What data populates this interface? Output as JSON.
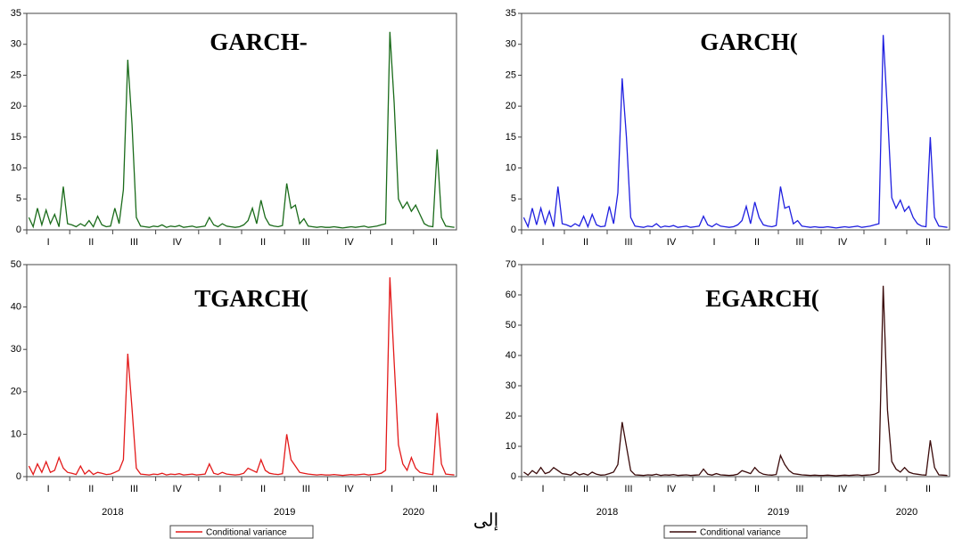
{
  "chart_data": [
    {
      "type": "line",
      "title": "GARCH-",
      "color": "#1a6b1a",
      "ylim": [
        0,
        35
      ],
      "yticks": [
        0,
        5,
        10,
        15,
        20,
        25,
        30,
        35
      ],
      "quarters": [
        "I",
        "II",
        "III",
        "IV",
        "I",
        "II",
        "III",
        "IV",
        "I",
        "II"
      ],
      "values": [
        2,
        0.5,
        3.5,
        0.8,
        3.2,
        1,
        2.5,
        0.5,
        7,
        1,
        0.8,
        0.5,
        1,
        0.6,
        1.5,
        0.5,
        2.2,
        0.8,
        0.5,
        0.6,
        3.5,
        1,
        6.5,
        27.5,
        17,
        2,
        0.6,
        0.5,
        0.4,
        0.6,
        0.5,
        0.8,
        0.4,
        0.6,
        0.5,
        0.7,
        0.4,
        0.5,
        0.6,
        0.4,
        0.5,
        0.6,
        2,
        0.8,
        0.5,
        1,
        0.6,
        0.5,
        0.4,
        0.5,
        0.8,
        1.5,
        3.5,
        1,
        4.8,
        2,
        0.8,
        0.6,
        0.5,
        0.7,
        7.5,
        3.5,
        4,
        1,
        1.8,
        0.6,
        0.5,
        0.4,
        0.5,
        0.4,
        0.4,
        0.5,
        0.4,
        0.3,
        0.4,
        0.5,
        0.4,
        0.5,
        0.6,
        0.4,
        0.5,
        0.6,
        0.8,
        1,
        32,
        20.5,
        5,
        3.5,
        4.5,
        3,
        4,
        2.5,
        1,
        0.6,
        0.5,
        13,
        2,
        0.6,
        0.5,
        0.4
      ]
    },
    {
      "type": "line",
      "title": "GARCH(",
      "color": "#1f1fe0",
      "ylim": [
        0,
        35
      ],
      "yticks": [
        0,
        5,
        10,
        15,
        20,
        25,
        30,
        35
      ],
      "quarters": [
        "I",
        "II",
        "III",
        "IV",
        "I",
        "II",
        "III",
        "IV",
        "I",
        "II"
      ],
      "values": [
        2,
        0.5,
        3.5,
        0.8,
        3.5,
        1,
        3,
        0.5,
        7,
        1,
        0.8,
        0.5,
        1,
        0.6,
        2.2,
        0.5,
        2.5,
        0.8,
        0.5,
        0.6,
        3.8,
        1,
        6,
        24.5,
        15,
        2,
        0.6,
        0.5,
        0.4,
        0.6,
        0.5,
        1,
        0.4,
        0.6,
        0.5,
        0.7,
        0.4,
        0.5,
        0.6,
        0.4,
        0.5,
        0.6,
        2.2,
        0.8,
        0.5,
        1,
        0.6,
        0.5,
        0.4,
        0.5,
        0.8,
        1.5,
        3.8,
        1,
        4.5,
        2,
        0.8,
        0.6,
        0.5,
        0.7,
        7,
        3.5,
        3.8,
        1,
        1.5,
        0.6,
        0.5,
        0.4,
        0.5,
        0.4,
        0.4,
        0.5,
        0.4,
        0.3,
        0.4,
        0.5,
        0.4,
        0.5,
        0.6,
        0.4,
        0.5,
        0.6,
        0.8,
        1,
        31.5,
        19,
        5.2,
        3.5,
        4.8,
        3,
        3.8,
        2,
        1,
        0.6,
        0.5,
        15,
        2,
        0.6,
        0.5,
        0.4
      ]
    },
    {
      "type": "line",
      "title": "TGARCH(",
      "color": "#e31a1a",
      "ylim": [
        0,
        50
      ],
      "yticks": [
        0,
        10,
        20,
        30,
        40,
        50
      ],
      "quarters": [
        "I",
        "II",
        "III",
        "IV",
        "I",
        "II",
        "III",
        "IV",
        "I",
        "II"
      ],
      "values": [
        2.5,
        0.5,
        3,
        1,
        3.5,
        1,
        1.5,
        4.5,
        2,
        1,
        0.8,
        0.5,
        2.5,
        0.6,
        1.5,
        0.5,
        1,
        0.8,
        0.5,
        0.6,
        1,
        1.5,
        4,
        29,
        16,
        2,
        0.6,
        0.5,
        0.4,
        0.6,
        0.5,
        0.8,
        0.4,
        0.6,
        0.5,
        0.7,
        0.4,
        0.5,
        0.6,
        0.4,
        0.5,
        0.6,
        3,
        0.8,
        0.5,
        1,
        0.6,
        0.5,
        0.4,
        0.5,
        0.8,
        2,
        1.5,
        1,
        4,
        1.5,
        0.8,
        0.6,
        0.5,
        0.7,
        10,
        4,
        2.5,
        1,
        0.8,
        0.6,
        0.5,
        0.4,
        0.5,
        0.4,
        0.4,
        0.5,
        0.4,
        0.3,
        0.4,
        0.5,
        0.4,
        0.5,
        0.6,
        0.4,
        0.5,
        0.6,
        0.8,
        1.5,
        47,
        27,
        7.5,
        3,
        1.5,
        4.5,
        2,
        1,
        0.8,
        0.6,
        0.5,
        15,
        3,
        0.6,
        0.5,
        0.4
      ]
    },
    {
      "type": "line",
      "title": "EGARCH(",
      "color": "#3a0a0a",
      "ylim": [
        0,
        70
      ],
      "yticks": [
        0,
        10,
        20,
        30,
        40,
        50,
        60,
        70
      ],
      "quarters": [
        "I",
        "II",
        "III",
        "IV",
        "I",
        "II",
        "III",
        "IV",
        "I",
        "II"
      ],
      "values": [
        1.5,
        0.5,
        2,
        1,
        3,
        1,
        1.5,
        3,
        2,
        1,
        0.8,
        0.5,
        1.5,
        0.6,
        1,
        0.5,
        1.5,
        0.8,
        0.5,
        0.6,
        1,
        1.5,
        4,
        18,
        10,
        2,
        0.6,
        0.5,
        0.4,
        0.6,
        0.5,
        0.8,
        0.4,
        0.6,
        0.5,
        0.7,
        0.4,
        0.5,
        0.6,
        0.4,
        0.5,
        0.6,
        2.5,
        0.8,
        0.5,
        1,
        0.6,
        0.5,
        0.4,
        0.5,
        0.8,
        2,
        1.5,
        1,
        3,
        1.5,
        0.8,
        0.6,
        0.5,
        0.7,
        7,
        4,
        2,
        1,
        0.8,
        0.6,
        0.5,
        0.4,
        0.5,
        0.4,
        0.4,
        0.5,
        0.4,
        0.3,
        0.4,
        0.5,
        0.4,
        0.5,
        0.6,
        0.4,
        0.5,
        0.6,
        0.8,
        1.5,
        63,
        22,
        5,
        2.5,
        1.5,
        3,
        1.5,
        1,
        0.8,
        0.6,
        0.5,
        12,
        3,
        0.6,
        0.5,
        0.4
      ]
    }
  ],
  "years": [
    "2018",
    "2019",
    "2020"
  ],
  "legend": "Conditional variance",
  "caption": "إلى"
}
